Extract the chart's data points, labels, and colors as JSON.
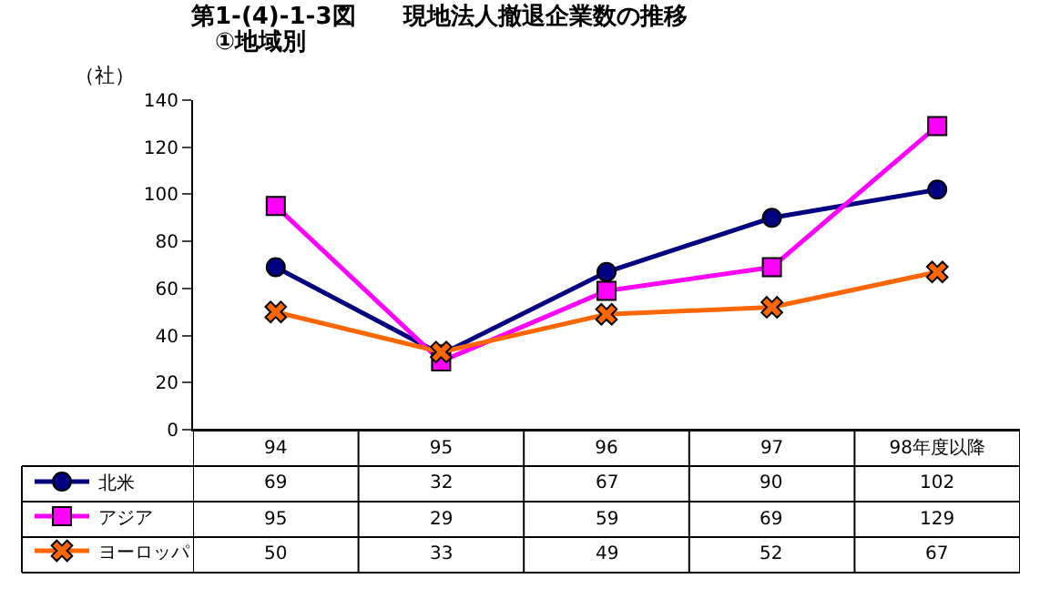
{
  "chart_data": {
    "type": "line",
    "title": "第1-(4)-1-3図　　現地法人撤退企業数の推移",
    "subtitle": "①地域別",
    "ylabel": "（社）",
    "categories": [
      "94",
      "95",
      "96",
      "97",
      "98年度以降"
    ],
    "series": [
      {
        "name": "北米",
        "color": "#000080",
        "marker": "circle",
        "values": [
          69,
          32,
          67,
          90,
          102
        ]
      },
      {
        "name": "アジア",
        "color": "#ff00ff",
        "marker": "square",
        "values": [
          95,
          29,
          59,
          69,
          129
        ]
      },
      {
        "name": "ヨーロッパ",
        "color": "#ff6600",
        "marker": "cross",
        "values": [
          50,
          33,
          49,
          52,
          67
        ]
      }
    ],
    "ylim": [
      0,
      140
    ],
    "yticks": [
      0,
      20,
      40,
      60,
      80,
      100,
      120,
      140
    ],
    "grid": false,
    "legend": "bottom left",
    "data_labels": true
  }
}
